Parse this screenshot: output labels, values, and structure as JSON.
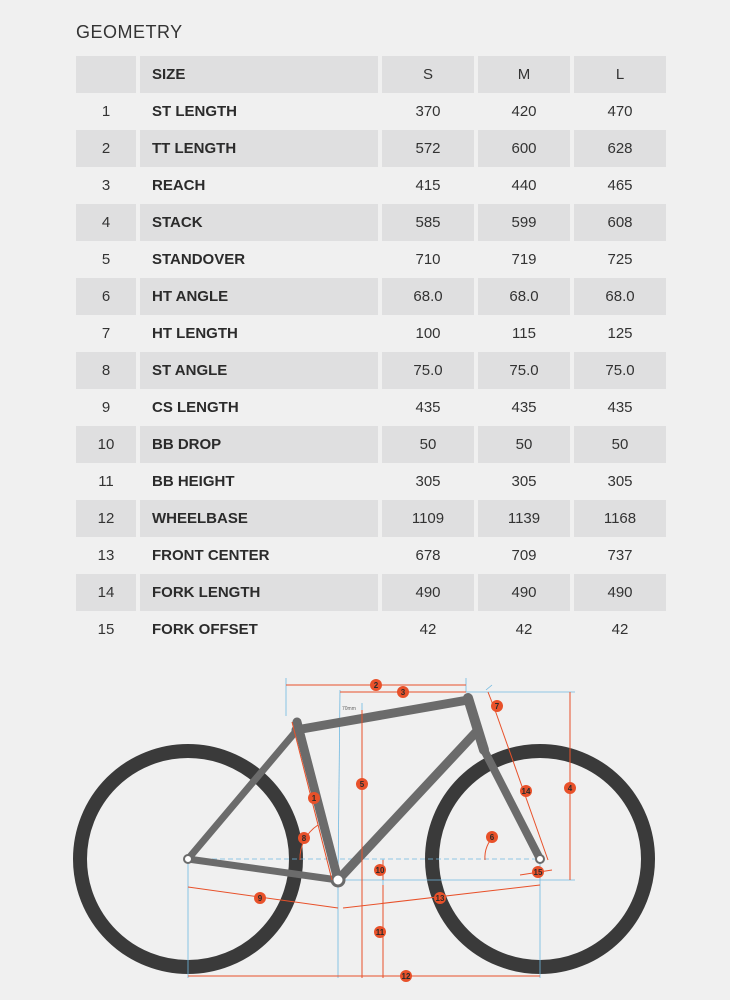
{
  "title": "GEOMETRY",
  "table": {
    "header": {
      "size_label": "SIZE",
      "sizes": [
        "S",
        "M",
        "L"
      ]
    },
    "rows": [
      {
        "idx": "1",
        "name": "ST LENGTH",
        "values": [
          "370",
          "420",
          "470"
        ]
      },
      {
        "idx": "2",
        "name": "TT LENGTH",
        "values": [
          "572",
          "600",
          "628"
        ]
      },
      {
        "idx": "3",
        "name": "REACH",
        "values": [
          "415",
          "440",
          "465"
        ]
      },
      {
        "idx": "4",
        "name": "STACK",
        "values": [
          "585",
          "599",
          "608"
        ]
      },
      {
        "idx": "5",
        "name": "STANDOVER",
        "values": [
          "710",
          "719",
          "725"
        ]
      },
      {
        "idx": "6",
        "name": "HT ANGLE",
        "values": [
          "68.0",
          "68.0",
          "68.0"
        ]
      },
      {
        "idx": "7",
        "name": "HT LENGTH",
        "values": [
          "100",
          "115",
          "125"
        ]
      },
      {
        "idx": "8",
        "name": "ST ANGLE",
        "values": [
          "75.0",
          "75.0",
          "75.0"
        ]
      },
      {
        "idx": "9",
        "name": "CS LENGTH",
        "values": [
          "435",
          "435",
          "435"
        ]
      },
      {
        "idx": "10",
        "name": "BB DROP",
        "values": [
          "50",
          "50",
          "50"
        ]
      },
      {
        "idx": "11",
        "name": "BB HEIGHT",
        "values": [
          "305",
          "305",
          "305"
        ]
      },
      {
        "idx": "12",
        "name": "WHEELBASE",
        "values": [
          "1109",
          "1139",
          "1168"
        ]
      },
      {
        "idx": "13",
        "name": "FRONT CENTER",
        "values": [
          "678",
          "709",
          "737"
        ]
      },
      {
        "idx": "14",
        "name": "FORK LENGTH",
        "values": [
          "490",
          "490",
          "490"
        ]
      },
      {
        "idx": "15",
        "name": "FORK OFFSET",
        "values": [
          "42",
          "42",
          "42"
        ]
      }
    ]
  },
  "diagram": {
    "badges": [
      "1",
      "2",
      "3",
      "4",
      "5",
      "6",
      "7",
      "8",
      "9",
      "10",
      "11",
      "12",
      "13",
      "14",
      "15"
    ],
    "standover_offset_label": "70mm",
    "colors": {
      "frame": "#6b6b6b",
      "wheel": "#3a3a3a",
      "dimension": "#e8512a",
      "guide": "#6fb8e0",
      "badge": "#e8512a"
    }
  }
}
